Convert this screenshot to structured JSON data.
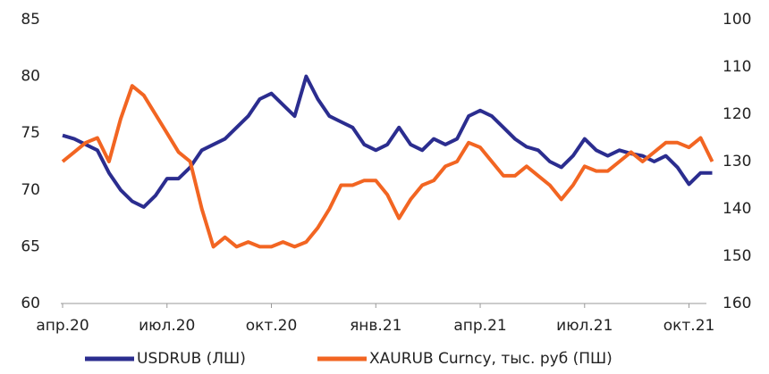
{
  "chart_data": {
    "type": "line",
    "categories": [
      "апр.20",
      null,
      null,
      null,
      null,
      null,
      null,
      null,
      null,
      "июл.20",
      null,
      null,
      null,
      null,
      null,
      null,
      null,
      null,
      "окт.20",
      null,
      null,
      null,
      null,
      null,
      null,
      null,
      null,
      "янв.21",
      null,
      null,
      null,
      null,
      null,
      null,
      null,
      null,
      "апр.21",
      null,
      null,
      null,
      null,
      null,
      null,
      null,
      null,
      "июл.21",
      null,
      null,
      null,
      null,
      null,
      null,
      null,
      null,
      "окт.21",
      null,
      null
    ],
    "series": [
      {
        "name": "USDRUB (ЛШ)",
        "color": "#2b2d8f",
        "axis": "y",
        "values": [
          74.8,
          74.5,
          74.0,
          73.5,
          71.5,
          70.0,
          69,
          68.5,
          69.5,
          71,
          71,
          72,
          73.5,
          74,
          74.5,
          75.5,
          76.5,
          78,
          78.5,
          77.5,
          76.5,
          80,
          78,
          76.5,
          76,
          75.5,
          74,
          73.5,
          74,
          75.5,
          74,
          73.5,
          74.5,
          74,
          74.5,
          76.5,
          77,
          76.5,
          75.5,
          74.5,
          73.8,
          73.5,
          72.5,
          72,
          73,
          74.5,
          73.5,
          73.0,
          73.5,
          73.2,
          73,
          72.5,
          73,
          72,
          70.5,
          71.5,
          71.5
        ]
      },
      {
        "name": "XAURUB Curncy, тыс. руб (ПШ)",
        "color": "#f26522",
        "axis": "y2",
        "values": [
          130,
          128,
          126,
          125,
          130,
          121,
          114,
          116,
          120,
          124,
          128,
          130,
          140,
          148,
          146,
          148,
          147,
          148,
          148,
          147,
          148,
          147,
          144,
          140,
          135,
          135,
          134,
          134,
          137,
          142,
          138,
          135,
          134,
          131,
          130,
          126,
          127,
          130,
          133,
          133,
          131,
          133,
          135,
          138,
          135,
          131,
          132,
          132,
          130,
          128,
          130,
          128,
          126,
          126,
          127,
          125,
          130
        ]
      }
    ],
    "ylim": [
      60,
      85
    ],
    "yticks": [
      60,
      65,
      70,
      75,
      80,
      85
    ],
    "y2lim": [
      160,
      100
    ],
    "y2ticks": [
      160,
      150,
      140,
      130,
      120,
      110,
      100
    ],
    "legend": "bottom"
  }
}
